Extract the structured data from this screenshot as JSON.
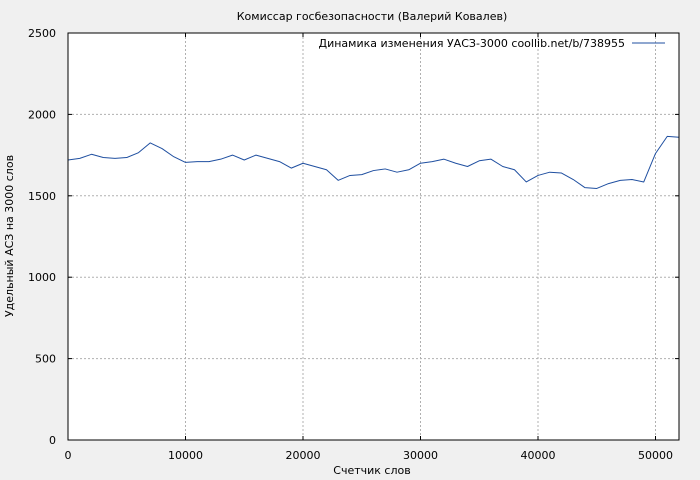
{
  "chart_data": {
    "type": "line",
    "title": "Комиссар госбезопасности (Валерий Ковалев)",
    "xlabel": "Счетчик слов",
    "ylabel": "Удельный АСЗ на 3000 слов",
    "xlim": [
      0,
      52000
    ],
    "ylim": [
      0,
      2500
    ],
    "xticks": [
      0,
      10000,
      20000,
      30000,
      40000,
      50000
    ],
    "yticks": [
      0,
      500,
      1000,
      1500,
      2000,
      2500
    ],
    "grid": true,
    "legend_position": "top-right",
    "series": [
      {
        "name": "Динамика изменения УАСЗ-3000 coollib.net/b/738955",
        "color": "#1f4fa0",
        "points": [
          [
            0,
            1720
          ],
          [
            1000,
            1730
          ],
          [
            2000,
            1755
          ],
          [
            3000,
            1735
          ],
          [
            4000,
            1730
          ],
          [
            5000,
            1735
          ],
          [
            6000,
            1765
          ],
          [
            7000,
            1825
          ],
          [
            8000,
            1790
          ],
          [
            9000,
            1740
          ],
          [
            10000,
            1705
          ],
          [
            11000,
            1710
          ],
          [
            12000,
            1710
          ],
          [
            13000,
            1725
          ],
          [
            14000,
            1750
          ],
          [
            15000,
            1720
          ],
          [
            16000,
            1750
          ],
          [
            17000,
            1730
          ],
          [
            18000,
            1710
          ],
          [
            19000,
            1670
          ],
          [
            20000,
            1700
          ],
          [
            21000,
            1680
          ],
          [
            22000,
            1660
          ],
          [
            23000,
            1595
          ],
          [
            24000,
            1625
          ],
          [
            25000,
            1630
          ],
          [
            26000,
            1655
          ],
          [
            27000,
            1665
          ],
          [
            28000,
            1645
          ],
          [
            29000,
            1660
          ],
          [
            30000,
            1700
          ],
          [
            31000,
            1710
          ],
          [
            32000,
            1725
          ],
          [
            33000,
            1700
          ],
          [
            34000,
            1680
          ],
          [
            35000,
            1715
          ],
          [
            36000,
            1725
          ],
          [
            37000,
            1680
          ],
          [
            38000,
            1660
          ],
          [
            39000,
            1585
          ],
          [
            40000,
            1625
          ],
          [
            41000,
            1645
          ],
          [
            42000,
            1640
          ],
          [
            43000,
            1600
          ],
          [
            44000,
            1550
          ],
          [
            45000,
            1545
          ],
          [
            46000,
            1575
          ],
          [
            47000,
            1595
          ],
          [
            48000,
            1600
          ],
          [
            49000,
            1585
          ],
          [
            50000,
            1760
          ],
          [
            51000,
            1865
          ],
          [
            52000,
            1860
          ]
        ]
      }
    ]
  }
}
